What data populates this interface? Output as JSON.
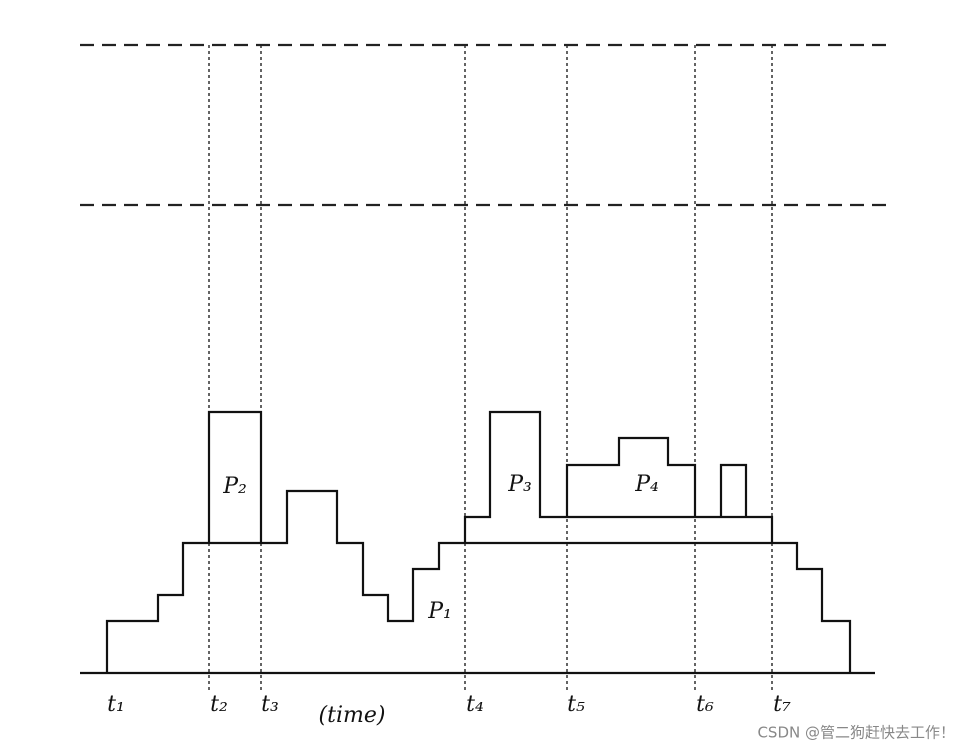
{
  "time_labels": [
    "t₁",
    "t₂",
    "t₃",
    "t₄",
    "t₅",
    "t₆",
    "t₇"
  ],
  "axis_label": "(time)",
  "region_labels": [
    "P₁",
    "P₂",
    "P₃",
    "P₄"
  ],
  "watermark": "CSDN @管二狗赶快去工作！"
}
